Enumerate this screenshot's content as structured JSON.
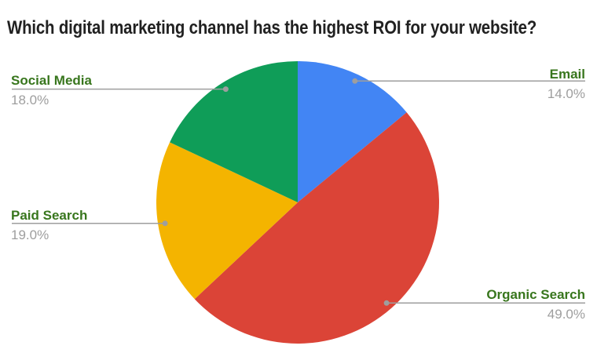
{
  "title": "Which digital marketing channel has the highest ROI for your website?",
  "chart_data": {
    "type": "pie",
    "title": "Which digital marketing channel has the highest ROI for your website?",
    "start_angle_deg": 0,
    "direction": "clockwise",
    "legend_position": "none",
    "labels_style": "callout",
    "slices": [
      {
        "label": "Email",
        "value": 14.0,
        "pct_label": "14.0%",
        "color": "#4285F4",
        "side": "right"
      },
      {
        "label": "Organic Search",
        "value": 49.0,
        "pct_label": "49.0%",
        "color": "#DB4437",
        "side": "right"
      },
      {
        "label": "Paid Search",
        "value": 19.0,
        "pct_label": "19.0%",
        "color": "#F4B400",
        "side": "left"
      },
      {
        "label": "Social Media",
        "value": 18.0,
        "pct_label": "18.0%",
        "color": "#0F9D58",
        "side": "left"
      }
    ],
    "colors": {
      "title_text": "#212121",
      "slice_name_text": "#38761d",
      "percent_text": "#9e9e9e",
      "leader_line": "#9e9e9e",
      "background": "#ffffff"
    }
  }
}
